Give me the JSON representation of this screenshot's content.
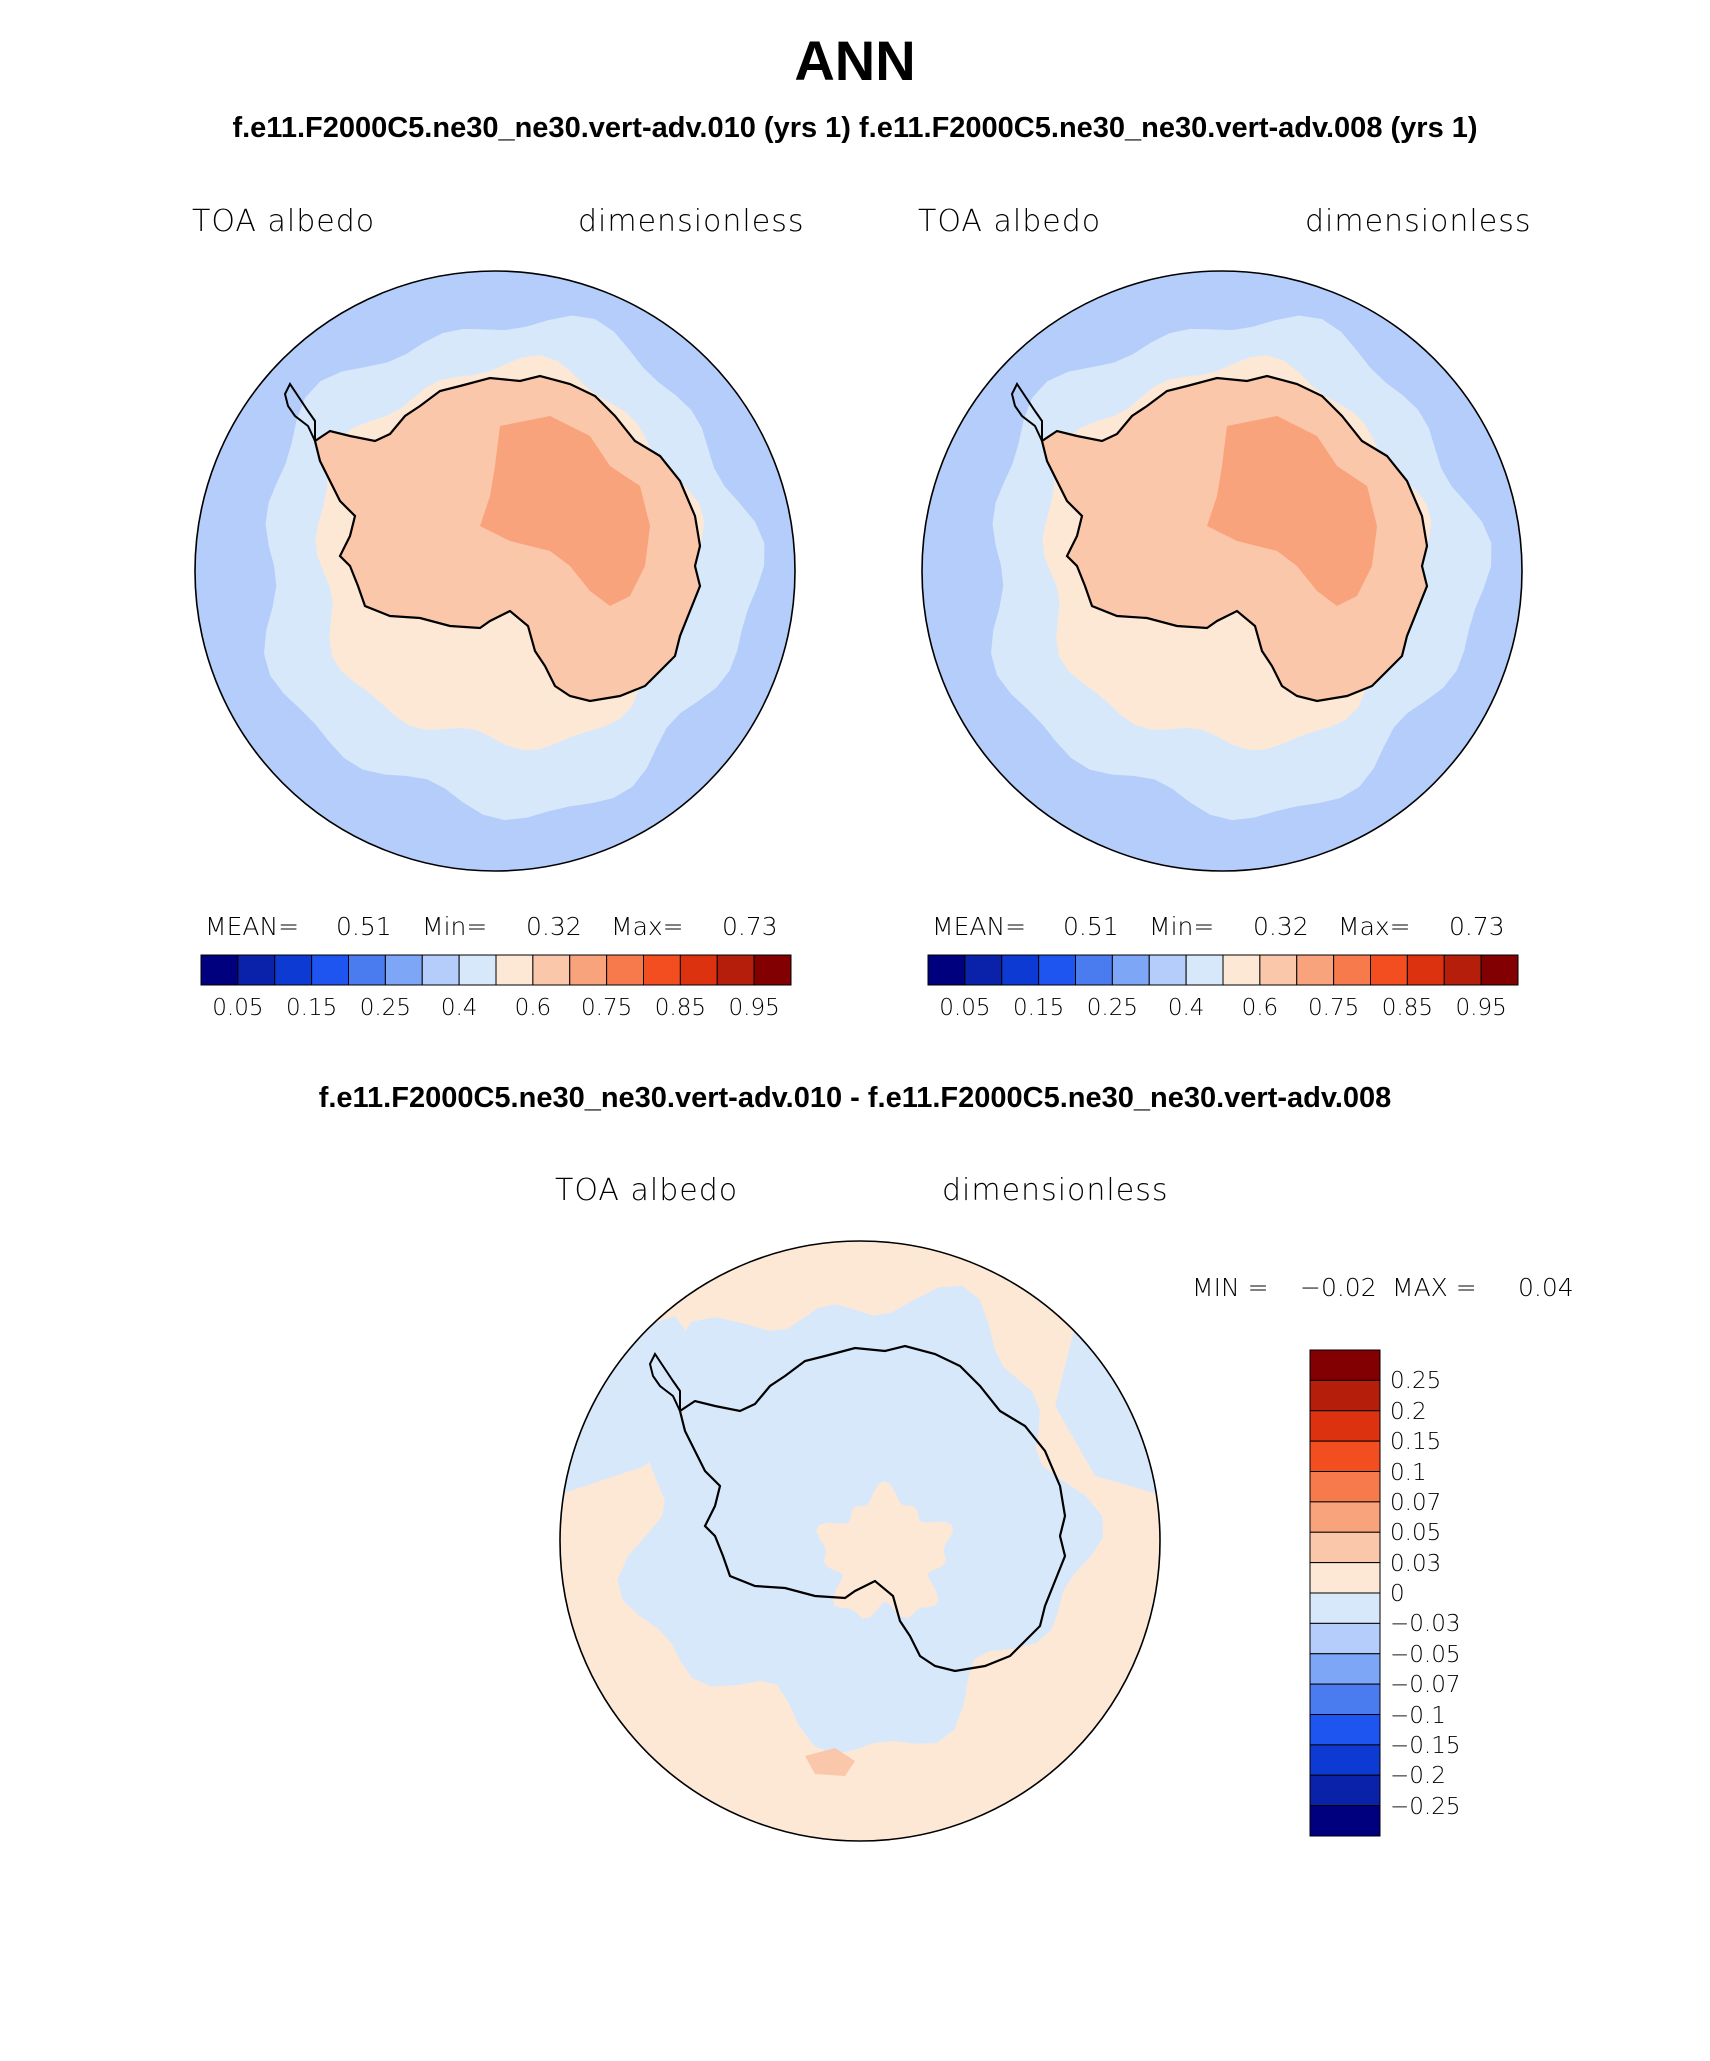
{
  "title": "ANN",
  "subtitle": "f.e11.F2000C5.ne30_ne30.vert-adv.010 (yrs 1) f.e11.F2000C5.ne30_ne30.vert-adv.008 (yrs 1)",
  "diff_title": "f.e11.F2000C5.ne30_ne30.vert-adv.010 - f.e11.F2000C5.ne30_ne30.vert-adv.008",
  "panels": [
    {
      "variable": "TOA albedo",
      "units": "dimensionless",
      "mean_label": "MEAN=",
      "mean_value": "0.51",
      "min_label": "Min=",
      "min_value": "0.32",
      "max_label": "Max=",
      "max_value": "0.73"
    },
    {
      "variable": "TOA albedo",
      "units": "dimensionless",
      "mean_label": "MEAN=",
      "mean_value": "0.51",
      "min_label": "Min=",
      "min_value": "0.32",
      "max_label": "Max=",
      "max_value": "0.73"
    }
  ],
  "diff_panel": {
    "variable": "TOA albedo",
    "units": "dimensionless",
    "min_label": "MIN =",
    "min_value": "−0.02",
    "max_label": "MAX =",
    "max_value": "0.04"
  },
  "colorbar_abs": {
    "colors": [
      "#00007f",
      "#0a22aa",
      "#0d3ad2",
      "#1e54f0",
      "#4a7cf0",
      "#7ea6f6",
      "#b4cdfa",
      "#d8e8fb",
      "#fde8d6",
      "#fbc7aa",
      "#f8a37c",
      "#f67a4c",
      "#f24e20",
      "#dc3210",
      "#b41e0a",
      "#820002"
    ],
    "tick_labels": [
      "0.05",
      "0.15",
      "0.25",
      "0.4",
      "0.6",
      "0.75",
      "0.85",
      "0.95"
    ]
  },
  "colorbar_diff": {
    "colors": [
      "#00007f",
      "#0a22aa",
      "#0d3ad2",
      "#1e54f0",
      "#4a7cf0",
      "#7ea6f6",
      "#b4cdfa",
      "#d8e8fb",
      "#fde8d6",
      "#fbc7aa",
      "#f8a37c",
      "#f67a4c",
      "#f24e20",
      "#dc3210",
      "#b41e0a",
      "#820002"
    ],
    "tick_labels": [
      "0.25",
      "0.2",
      "0.15",
      "0.1",
      "0.07",
      "0.05",
      "0.03",
      "0",
      "−0.03",
      "−0.05",
      "−0.07",
      "−0.1",
      "−0.15",
      "−0.2",
      "−0.25"
    ]
  },
  "map_colors": {
    "ocean_outer": "#b4cdfa",
    "ocean_inner": "#d8e8fb",
    "coast_shelf": "#fde8d6",
    "ice_sheet": "#fbc7aa",
    "plateau": "#f8a37c",
    "diff_base": "#fde8d6",
    "diff_neg": "#d8e8fb",
    "diff_pos2": "#fbc7aa",
    "coastline": "#000000"
  }
}
